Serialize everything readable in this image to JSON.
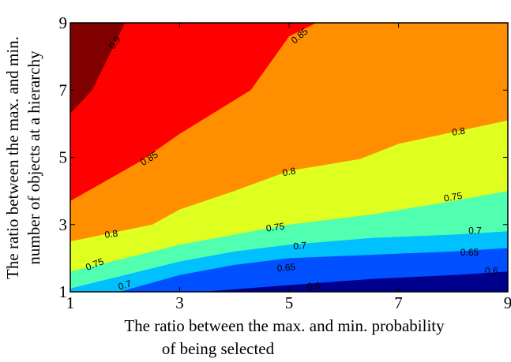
{
  "chart_data": {
    "type": "contour",
    "xlabel_lines": [
      "The ratio between the max. and min. probability",
      "of being selected"
    ],
    "ylabel_lines": [
      "The ratio between the max. and min.",
      "number of objects at a hierarchy"
    ],
    "xlim": [
      1,
      9
    ],
    "ylim": [
      1,
      9
    ],
    "xticks": [
      "1",
      "3",
      "5",
      "7",
      "9"
    ],
    "yticks": [
      "1",
      "3",
      "5",
      "7",
      "9"
    ],
    "grid": false,
    "colormap": "jet",
    "levels": [
      {
        "min": null,
        "max": 0.6,
        "color": "#00008f"
      },
      {
        "min": 0.6,
        "max": 0.65,
        "color": "#0050ff"
      },
      {
        "min": 0.65,
        "max": 0.7,
        "color": "#00c0ff"
      },
      {
        "min": 0.7,
        "max": 0.75,
        "color": "#50ffaf"
      },
      {
        "min": 0.75,
        "max": 0.8,
        "color": "#dfff20"
      },
      {
        "min": 0.8,
        "max": 0.85,
        "color": "#ff8f00"
      },
      {
        "min": 0.85,
        "max": 0.9,
        "color": "#ff0000"
      },
      {
        "min": 0.9,
        "max": null,
        "color": "#800000"
      }
    ],
    "contours": [
      {
        "level": 0.6,
        "points": [
          [
            3.4,
            1.0
          ],
          [
            5.0,
            1.2
          ],
          [
            6.5,
            1.38
          ],
          [
            8.0,
            1.5
          ],
          [
            9.0,
            1.6
          ]
        ]
      },
      {
        "level": 0.65,
        "points": [
          [
            1.9,
            1.0
          ],
          [
            3.0,
            1.5
          ],
          [
            4.0,
            1.8
          ],
          [
            5.0,
            2.0
          ],
          [
            6.5,
            2.1
          ],
          [
            8.0,
            2.2
          ],
          [
            9.0,
            2.3
          ]
        ]
      },
      {
        "level": 0.7,
        "points": [
          [
            1.0,
            1.1
          ],
          [
            2.0,
            1.5
          ],
          [
            3.0,
            1.9
          ],
          [
            4.0,
            2.2
          ],
          [
            5.0,
            2.4
          ],
          [
            6.5,
            2.6
          ],
          [
            8.0,
            2.7
          ],
          [
            9.0,
            2.8
          ]
        ]
      },
      {
        "level": 0.75,
        "points": [
          [
            1.0,
            1.6
          ],
          [
            2.0,
            2.0
          ],
          [
            3.0,
            2.4
          ],
          [
            4.0,
            2.7
          ],
          [
            5.0,
            3.0
          ],
          [
            6.5,
            3.3
          ],
          [
            8.0,
            3.7
          ],
          [
            9.0,
            4.0
          ]
        ]
      },
      {
        "level": 0.8,
        "points": [
          [
            1.0,
            2.5
          ],
          [
            2.5,
            3.0
          ],
          [
            3.0,
            3.45
          ],
          [
            4.0,
            4.0
          ],
          [
            5.0,
            4.6
          ],
          [
            6.3,
            4.95
          ],
          [
            7.0,
            5.4
          ],
          [
            8.0,
            5.75
          ],
          [
            9.0,
            6.1
          ]
        ]
      },
      {
        "level": 0.85,
        "points": [
          [
            1.0,
            3.7
          ],
          [
            2.3,
            4.9
          ],
          [
            3.0,
            5.7
          ],
          [
            4.3,
            7.0
          ],
          [
            5.0,
            8.6
          ],
          [
            5.5,
            9.0
          ]
        ]
      },
      {
        "level": 0.9,
        "points": [
          [
            1.0,
            6.3
          ],
          [
            1.4,
            7.0
          ],
          [
            2.0,
            9.0
          ]
        ]
      }
    ],
    "annotations": [
      {
        "text": "0.9",
        "x": 1.82,
        "y": 8.4,
        "angle": -55
      },
      {
        "text": "0.85",
        "x": 5.2,
        "y": 8.6,
        "angle": -40
      },
      {
        "text": "0.85",
        "x": 2.45,
        "y": 4.95,
        "angle": -32
      },
      {
        "text": "0.8",
        "x": 5.0,
        "y": 4.55,
        "angle": -10
      },
      {
        "text": "0.8",
        "x": 8.1,
        "y": 5.75,
        "angle": -8
      },
      {
        "text": "0.8",
        "x": 1.75,
        "y": 2.7,
        "angle": -8
      },
      {
        "text": "0.75",
        "x": 4.75,
        "y": 2.9,
        "angle": -8
      },
      {
        "text": "0.75",
        "x": 8.0,
        "y": 3.8,
        "angle": -10
      },
      {
        "text": "0.75",
        "x": 1.45,
        "y": 1.8,
        "angle": -22
      },
      {
        "text": "0.7",
        "x": 5.2,
        "y": 2.35,
        "angle": -5
      },
      {
        "text": "0.7",
        "x": 8.4,
        "y": 2.8,
        "angle": 0
      },
      {
        "text": "0.7",
        "x": 2.0,
        "y": 1.18,
        "angle": -18
      },
      {
        "text": "0.65",
        "x": 4.95,
        "y": 1.7,
        "angle": -5
      },
      {
        "text": "0.65",
        "x": 8.3,
        "y": 2.15,
        "angle": 0
      },
      {
        "text": "0.6",
        "x": 5.45,
        "y": 1.15,
        "angle": -4
      },
      {
        "text": "0.6",
        "x": 8.7,
        "y": 1.6,
        "angle": 0
      }
    ]
  }
}
